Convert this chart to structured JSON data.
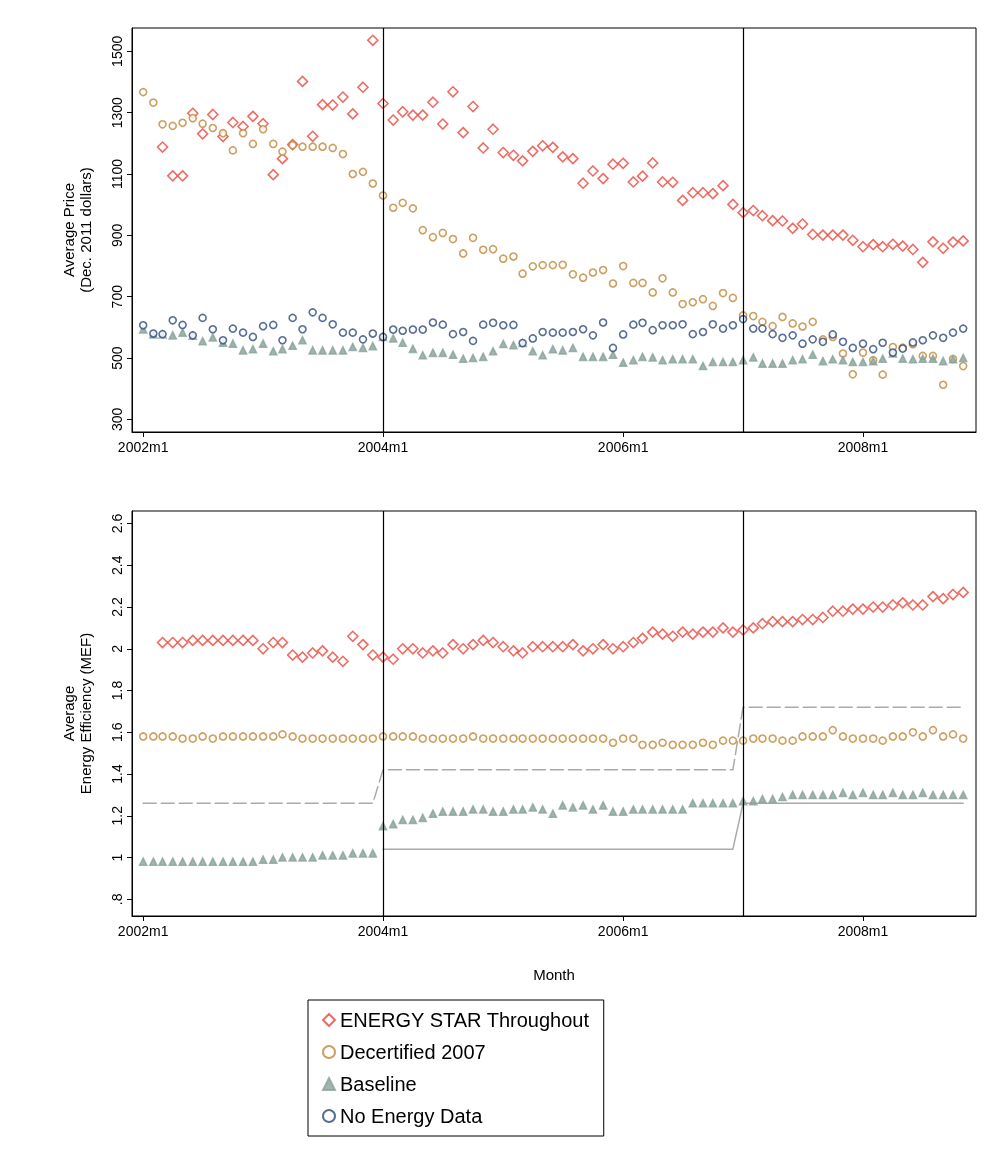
{
  "chart_data": [
    {
      "type": "scatter",
      "ylabel": "Average Price\n(Dec. 2011 dollars)",
      "x": [
        "2002-01",
        "2002-02",
        "2002-03",
        "2002-04",
        "2002-05",
        "2002-06",
        "2002-07",
        "2002-08",
        "2002-09",
        "2002-10",
        "2002-11",
        "2002-12",
        "2003-01",
        "2003-02",
        "2003-03",
        "2003-04",
        "2003-05",
        "2003-06",
        "2003-07",
        "2003-08",
        "2003-09",
        "2003-10",
        "2003-11",
        "2003-12",
        "2004-01",
        "2004-02",
        "2004-03",
        "2004-04",
        "2004-05",
        "2004-06",
        "2004-07",
        "2004-08",
        "2004-09",
        "2004-10",
        "2004-11",
        "2004-12",
        "2005-01",
        "2005-02",
        "2005-03",
        "2005-04",
        "2005-05",
        "2005-06",
        "2005-07",
        "2005-08",
        "2005-09",
        "2005-10",
        "2005-11",
        "2005-12",
        "2006-01",
        "2006-02",
        "2006-03",
        "2006-04",
        "2006-05",
        "2006-06",
        "2006-07",
        "2006-08",
        "2006-09",
        "2006-10",
        "2006-11",
        "2006-12",
        "2007-01",
        "2007-02",
        "2007-03",
        "2007-04",
        "2007-05",
        "2007-06",
        "2007-07",
        "2007-08",
        "2007-09",
        "2007-10",
        "2007-11",
        "2007-12",
        "2008-01",
        "2008-02",
        "2008-03",
        "2008-04",
        "2008-05",
        "2008-06",
        "2008-07",
        "2008-08",
        "2008-09",
        "2008-10",
        "2008-11"
      ],
      "xlim": [
        "2001-11-28",
        "2008-12-10"
      ],
      "xticks": [
        {
          "value": "2002-01",
          "label": "2002m1"
        },
        {
          "value": "2004-01",
          "label": "2004m1"
        },
        {
          "value": "2006-01",
          "label": "2006m1"
        },
        {
          "value": "2008-01",
          "label": "2008m1"
        }
      ],
      "ylim": [
        259,
        1576
      ],
      "yticks": [
        300,
        500,
        700,
        900,
        1100,
        1300,
        1500
      ],
      "grid": false,
      "legend": "bottom",
      "series": [
        {
          "name": "ENERGY STAR Throughout",
          "color": "#e8483e",
          "marker": "diamond",
          "values": [
            null,
            null,
            1188,
            1094,
            1094,
            1298,
            1231,
            1294,
            1222,
            1268,
            1255,
            1288,
            1264,
            1098,
            1150,
            1196,
            1402,
            1223,
            1326,
            1325,
            1351,
            1296,
            1383,
            1536,
            1330,
            1276,
            1303,
            1292,
            1292,
            1334,
            1263,
            1368,
            1235,
            1320,
            1185,
            1246,
            1170,
            1161,
            1143,
            1174,
            1192,
            1187,
            1156,
            1150,
            1070,
            1110,
            1085,
            1132,
            1135,
            1074,
            1093,
            1136,
            1074,
            1073,
            1014,
            1039,
            1039,
            1036,
            1062,
            1001,
            974,
            981,
            964,
            948,
            947,
            923,
            937,
            903,
            901,
            901,
            901,
            884,
            863,
            870,
            863,
            871,
            865,
            854,
            812,
            879,
            858,
            878,
            882
          ]
        },
        {
          "name": "Decertified 2007",
          "color": "#c0883a",
          "marker": "circle",
          "values": [
            1367,
            1333,
            1262,
            1257,
            1267,
            1282,
            1264,
            1250,
            1233,
            1177,
            1233,
            1198,
            1246,
            1198,
            1173,
            1194,
            1189,
            1189,
            1189,
            1185,
            1165,
            1100,
            1107,
            1069,
            1030,
            990,
            1006,
            988,
            917,
            894,
            908,
            888,
            841,
            892,
            853,
            855,
            824,
            831,
            775,
            799,
            803,
            803,
            804,
            773,
            762,
            779,
            787,
            743,
            800,
            745,
            745,
            714,
            760,
            714,
            676,
            682,
            692,
            670,
            712,
            696,
            639,
            637,
            618,
            604,
            634,
            613,
            603,
            618,
            561,
            569,
            515,
            447,
            518,
            493,
            446,
            536,
            534,
            545,
            507,
            507,
            413,
            497,
            474
          ]
        },
        {
          "name": "Baseline",
          "color": "#8aa39b",
          "marker": "triangle",
          "values": [
            593,
            577,
            577,
            574,
            583,
            573,
            555,
            567,
            550,
            547,
            525,
            529,
            547,
            522,
            529,
            540,
            558,
            525,
            525,
            525,
            525,
            536,
            533,
            539,
            569,
            564,
            550,
            530,
            509,
            517,
            517,
            511,
            498,
            500,
            504,
            522,
            546,
            542,
            549,
            522,
            509,
            529,
            525,
            533,
            504,
            504,
            504,
            511,
            485,
            493,
            504,
            502,
            493,
            496,
            496,
            496,
            474,
            487,
            487,
            487,
            493,
            502,
            482,
            482,
            482,
            493,
            496,
            511,
            490,
            496,
            493,
            487,
            487,
            490,
            498,
            515,
            498,
            496,
            498,
            498,
            490,
            496,
            500
          ]
        },
        {
          "name": "No Energy Data",
          "color": "#2e4a7a",
          "marker": "circle",
          "values": [
            607,
            580,
            578,
            623,
            608,
            574,
            631,
            594,
            558,
            596,
            583,
            569,
            604,
            608,
            558,
            631,
            594,
            649,
            631,
            610,
            583,
            583,
            561,
            580,
            569,
            593,
            589,
            593,
            593,
            616,
            609,
            578,
            585,
            556,
            609,
            615,
            607,
            608,
            549,
            564,
            585,
            583,
            583,
            585,
            594,
            574,
            616,
            533,
            577,
            609,
            615,
            591,
            607,
            607,
            610,
            578,
            585,
            610,
            596,
            607,
            627,
            596,
            596,
            578,
            566,
            574,
            547,
            561,
            553,
            577,
            553,
            533,
            547,
            529,
            550,
            518,
            531,
            551,
            558,
            574,
            566,
            583,
            596
          ]
        }
      ],
      "ref_lines": [
        {
          "axis": "x",
          "value": "2004-01",
          "color": "#000000"
        },
        {
          "axis": "x",
          "value": "2007-01",
          "color": "#000000"
        }
      ]
    },
    {
      "type": "scatter",
      "xlabel": "Month",
      "ylabel": "Average\nEnergy Efficiency (MEF)",
      "x": [
        "2002-01",
        "2002-02",
        "2002-03",
        "2002-04",
        "2002-05",
        "2002-06",
        "2002-07",
        "2002-08",
        "2002-09",
        "2002-10",
        "2002-11",
        "2002-12",
        "2003-01",
        "2003-02",
        "2003-03",
        "2003-04",
        "2003-05",
        "2003-06",
        "2003-07",
        "2003-08",
        "2003-09",
        "2003-10",
        "2003-11",
        "2003-12",
        "2004-01",
        "2004-02",
        "2004-03",
        "2004-04",
        "2004-05",
        "2004-06",
        "2004-07",
        "2004-08",
        "2004-09",
        "2004-10",
        "2004-11",
        "2004-12",
        "2005-01",
        "2005-02",
        "2005-03",
        "2005-04",
        "2005-05",
        "2005-06",
        "2005-07",
        "2005-08",
        "2005-09",
        "2005-10",
        "2005-11",
        "2005-12",
        "2006-01",
        "2006-02",
        "2006-03",
        "2006-04",
        "2006-05",
        "2006-06",
        "2006-07",
        "2006-08",
        "2006-09",
        "2006-10",
        "2006-11",
        "2006-12",
        "2007-01",
        "2007-02",
        "2007-03",
        "2007-04",
        "2007-05",
        "2007-06",
        "2007-07",
        "2007-08",
        "2007-09",
        "2007-10",
        "2007-11",
        "2007-12",
        "2008-01",
        "2008-02",
        "2008-03",
        "2008-04",
        "2008-05",
        "2008-06",
        "2008-07",
        "2008-08",
        "2008-09",
        "2008-10",
        "2008-11"
      ],
      "xlim": [
        "2001-11-28",
        "2008-12-10"
      ],
      "xticks": [
        {
          "value": "2002-01",
          "label": "2002m1"
        },
        {
          "value": "2004-01",
          "label": "2004m1"
        },
        {
          "value": "2006-01",
          "label": "2006m1"
        },
        {
          "value": "2008-01",
          "label": "2008m1"
        }
      ],
      "ylim": [
        0.72,
        2.66
      ],
      "yticks": [
        {
          "value": 0.8,
          "label": ".8"
        },
        1,
        1.2,
        1.4,
        1.6,
        1.8,
        2,
        2.2,
        2.4,
        2.6
      ],
      "grid": false,
      "series": [
        {
          "color": "#e8483e",
          "marker": "diamond",
          "values": [
            null,
            null,
            2.03,
            2.03,
            2.03,
            2.04,
            2.04,
            2.04,
            2.04,
            2.04,
            2.04,
            2.04,
            2.0,
            2.03,
            2.03,
            1.97,
            1.96,
            1.98,
            1.99,
            1.96,
            1.94,
            2.06,
            2.02,
            1.97,
            1.96,
            1.95,
            2.0,
            2.0,
            1.98,
            1.99,
            1.98,
            2.02,
            2.0,
            2.02,
            2.04,
            2.03,
            2.01,
            1.99,
            1.98,
            2.01,
            2.01,
            2.01,
            2.01,
            2.02,
            1.99,
            2.0,
            2.02,
            2.0,
            2.01,
            2.03,
            2.05,
            2.08,
            2.07,
            2.06,
            2.08,
            2.07,
            2.08,
            2.08,
            2.1,
            2.08,
            2.09,
            2.1,
            2.12,
            2.13,
            2.13,
            2.13,
            2.14,
            2.14,
            2.15,
            2.18,
            2.18,
            2.19,
            2.19,
            2.2,
            2.2,
            2.21,
            2.22,
            2.21,
            2.21,
            2.25,
            2.24,
            2.26,
            2.27
          ]
        },
        {
          "color": "#c0883a",
          "marker": "circle",
          "values": [
            1.58,
            1.58,
            1.58,
            1.58,
            1.57,
            1.57,
            1.58,
            1.57,
            1.58,
            1.58,
            1.58,
            1.58,
            1.58,
            1.58,
            1.59,
            1.58,
            1.57,
            1.57,
            1.57,
            1.57,
            1.57,
            1.57,
            1.57,
            1.57,
            1.58,
            1.58,
            1.58,
            1.58,
            1.57,
            1.57,
            1.57,
            1.57,
            1.57,
            1.58,
            1.57,
            1.57,
            1.57,
            1.57,
            1.57,
            1.57,
            1.57,
            1.57,
            1.57,
            1.57,
            1.57,
            1.57,
            1.57,
            1.55,
            1.57,
            1.57,
            1.54,
            1.54,
            1.55,
            1.54,
            1.54,
            1.54,
            1.55,
            1.54,
            1.56,
            1.56,
            1.56,
            1.57,
            1.57,
            1.57,
            1.56,
            1.56,
            1.58,
            1.58,
            1.58,
            1.61,
            1.58,
            1.57,
            1.57,
            1.57,
            1.56,
            1.58,
            1.58,
            1.6,
            1.58,
            1.61,
            1.58,
            1.59,
            1.57
          ]
        },
        {
          "color": "#8aa39b",
          "marker": "triangle",
          "values": [
            0.98,
            0.98,
            0.98,
            0.98,
            0.98,
            0.98,
            0.98,
            0.98,
            0.98,
            0.98,
            0.98,
            0.98,
            0.99,
            0.99,
            1.0,
            1.0,
            1.0,
            1.0,
            1.01,
            1.01,
            1.01,
            1.02,
            1.02,
            1.02,
            1.15,
            1.16,
            1.18,
            1.18,
            1.19,
            1.21,
            1.22,
            1.22,
            1.22,
            1.23,
            1.23,
            1.22,
            1.22,
            1.23,
            1.23,
            1.24,
            1.23,
            1.21,
            1.25,
            1.24,
            1.25,
            1.23,
            1.25,
            1.22,
            1.22,
            1.23,
            1.23,
            1.23,
            1.23,
            1.23,
            1.23,
            1.26,
            1.26,
            1.26,
            1.26,
            1.26,
            1.27,
            1.27,
            1.28,
            1.28,
            1.29,
            1.3,
            1.3,
            1.3,
            1.3,
            1.3,
            1.31,
            1.3,
            1.31,
            1.3,
            1.3,
            1.31,
            1.3,
            1.3,
            1.31,
            1.3,
            1.3,
            1.3,
            1.3
          ]
        },
        {
          "type": "line",
          "color": "#aaaaaa",
          "line_style": "dashed",
          "marker": "none",
          "x": [
            "2002-01",
            "2003-12",
            "2004-01",
            "2006-12",
            "2007-01",
            "2008-11"
          ],
          "values": [
            1.26,
            1.26,
            1.42,
            1.42,
            1.72,
            1.72
          ]
        },
        {
          "type": "line",
          "color": "#aaaaaa",
          "line_style": "solid",
          "marker": "none",
          "x": [
            "2004-01",
            "2006-12",
            "2007-01",
            "2008-11"
          ],
          "values": [
            1.04,
            1.04,
            1.26,
            1.26
          ]
        }
      ],
      "ref_lines": [
        {
          "axis": "x",
          "value": "2004-01",
          "color": "#000000"
        },
        {
          "axis": "x",
          "value": "2007-01",
          "color": "#000000"
        }
      ]
    }
  ]
}
